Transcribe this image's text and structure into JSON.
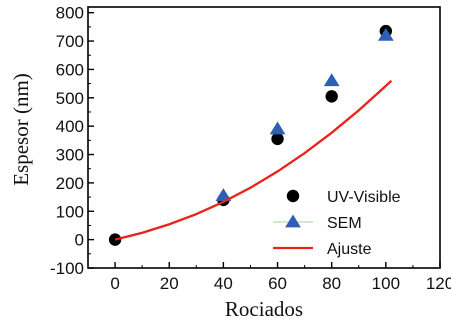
{
  "chart_data": {
    "type": "scatter",
    "title": "",
    "xlabel": "Rociados",
    "ylabel": "Espesor (nm)",
    "xlim": [
      -10,
      120
    ],
    "ylim": [
      -100,
      820
    ],
    "x_ticks": [
      0,
      20,
      40,
      60,
      80,
      100,
      120
    ],
    "y_ticks": [
      -100,
      0,
      100,
      200,
      300,
      400,
      500,
      600,
      700,
      800
    ],
    "grid": false,
    "legend_position": "bottom-right",
    "series": [
      {
        "name": "UV-Visible",
        "kind": "scatter",
        "marker": "circle",
        "color": "#000000",
        "x": [
          0,
          40,
          60,
          80,
          100
        ],
        "y": [
          0,
          140,
          355,
          505,
          735
        ]
      },
      {
        "name": "SEM",
        "kind": "scatter",
        "marker": "triangle",
        "color": "#2f5fb5",
        "x": [
          40,
          60,
          80,
          100
        ],
        "y": [
          155,
          390,
          560,
          720
        ]
      },
      {
        "name": "Ajuste",
        "kind": "line",
        "color": "#e8251c",
        "x": [
          0,
          10,
          20,
          30,
          40,
          50,
          60,
          70,
          80,
          90,
          100,
          102
        ],
        "y": [
          0,
          24,
          54,
          90,
          133,
          183,
          240,
          305,
          377,
          456,
          542,
          560
        ]
      }
    ]
  }
}
